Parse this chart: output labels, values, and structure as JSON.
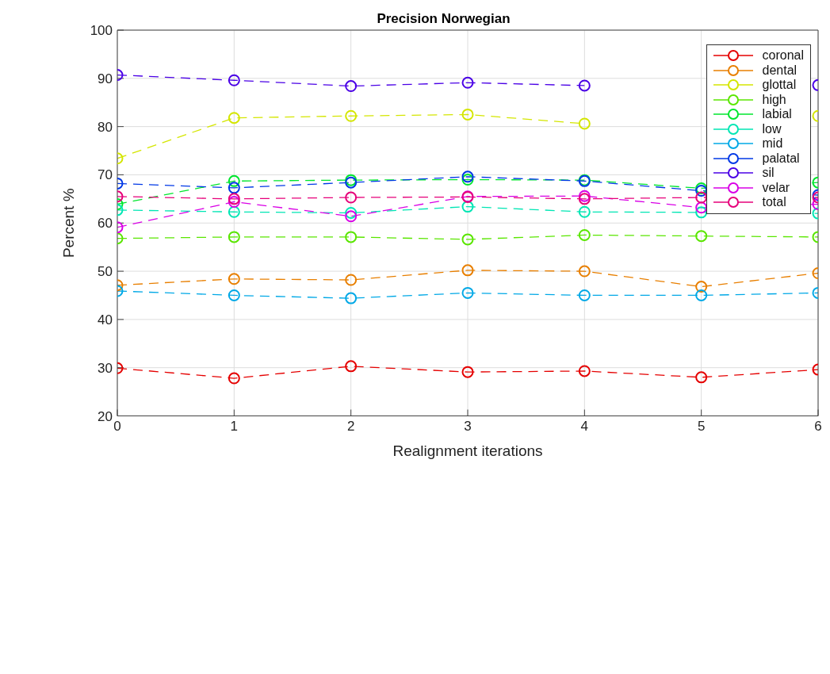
{
  "chart_data": {
    "type": "line",
    "title": "Precision Norwegian",
    "xlabel": "Realignment iterations",
    "ylabel": "Percent %",
    "x": [
      0,
      1,
      2,
      3,
      4,
      5,
      6
    ],
    "xlim": [
      0,
      6
    ],
    "xticks": [
      0,
      1,
      2,
      3,
      4,
      5,
      6
    ],
    "ylim": [
      20,
      100
    ],
    "yticks": [
      20,
      30,
      40,
      50,
      60,
      70,
      80,
      90,
      100
    ],
    "grid": true,
    "legend": "top right",
    "marker": "circle",
    "line_style": "dashed",
    "series": [
      {
        "name": "coronal",
        "color": "#e50000",
        "values": [
          29.9,
          27.8,
          30.3,
          29.1,
          29.3,
          28.0,
          29.6
        ]
      },
      {
        "name": "dental",
        "color": "#e87f00",
        "values": [
          47.1,
          48.4,
          48.2,
          50.2,
          50.0,
          46.8,
          49.6
        ]
      },
      {
        "name": "glottal",
        "color": "#d4e600",
        "values": [
          73.4,
          81.8,
          82.2,
          82.5,
          80.6,
          null,
          82.2
        ]
      },
      {
        "name": "high",
        "color": "#5ae600",
        "values": [
          56.8,
          57.1,
          57.1,
          56.6,
          57.5,
          57.3,
          57.1
        ]
      },
      {
        "name": "labial",
        "color": "#00e62e",
        "values": [
          63.9,
          68.7,
          68.9,
          69.0,
          68.9,
          67.2,
          68.4
        ]
      },
      {
        "name": "low",
        "color": "#00e6b4",
        "values": [
          62.7,
          62.3,
          62.1,
          63.4,
          62.3,
          62.2,
          62.0
        ]
      },
      {
        "name": "mid",
        "color": "#00a8e6",
        "values": [
          45.9,
          45.0,
          44.4,
          45.5,
          45.0,
          45.0,
          45.5
        ]
      },
      {
        "name": "palatal",
        "color": "#0038e6",
        "values": [
          68.2,
          67.3,
          68.4,
          69.6,
          68.7,
          66.7,
          65.8
        ]
      },
      {
        "name": "sil",
        "color": "#4a00e6",
        "values": [
          90.7,
          89.6,
          88.4,
          89.1,
          88.5,
          null,
          88.6
        ]
      },
      {
        "name": "velar",
        "color": "#d900e6",
        "values": [
          59.1,
          64.4,
          61.4,
          65.5,
          65.6,
          63.2,
          63.9
        ]
      },
      {
        "name": "total",
        "color": "#e6007a",
        "values": [
          65.5,
          65.0,
          65.3,
          65.4,
          65.0,
          65.3,
          65.3
        ]
      }
    ]
  }
}
